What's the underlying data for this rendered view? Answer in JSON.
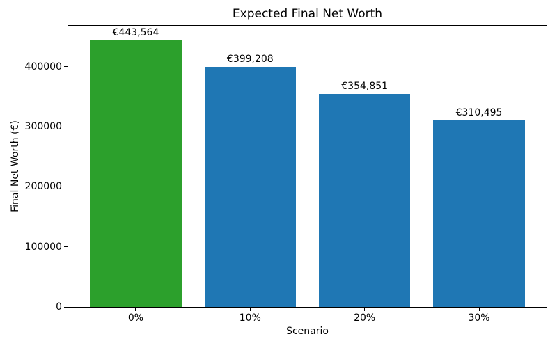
{
  "chart_data": {
    "type": "bar",
    "title": "Expected Final Net Worth",
    "xlabel": "Scenario",
    "ylabel": "Final Net Worth (€)",
    "categories": [
      "0%",
      "10%",
      "20%",
      "30%"
    ],
    "values": [
      443564,
      399208,
      354851,
      310495
    ],
    "bar_labels": [
      "€443,564",
      "€399,208",
      "€354,851",
      "€310,495"
    ],
    "bar_colors": [
      "#2ca02c",
      "#1f77b4",
      "#1f77b4",
      "#1f77b4"
    ],
    "yticks": [
      0,
      100000,
      200000,
      300000,
      400000
    ],
    "ytick_labels": [
      "0",
      "100000",
      "200000",
      "300000",
      "400000"
    ],
    "ylim": [
      0,
      468000
    ],
    "grid": false,
    "background": "#ffffff",
    "spine_color": "#000000"
  }
}
